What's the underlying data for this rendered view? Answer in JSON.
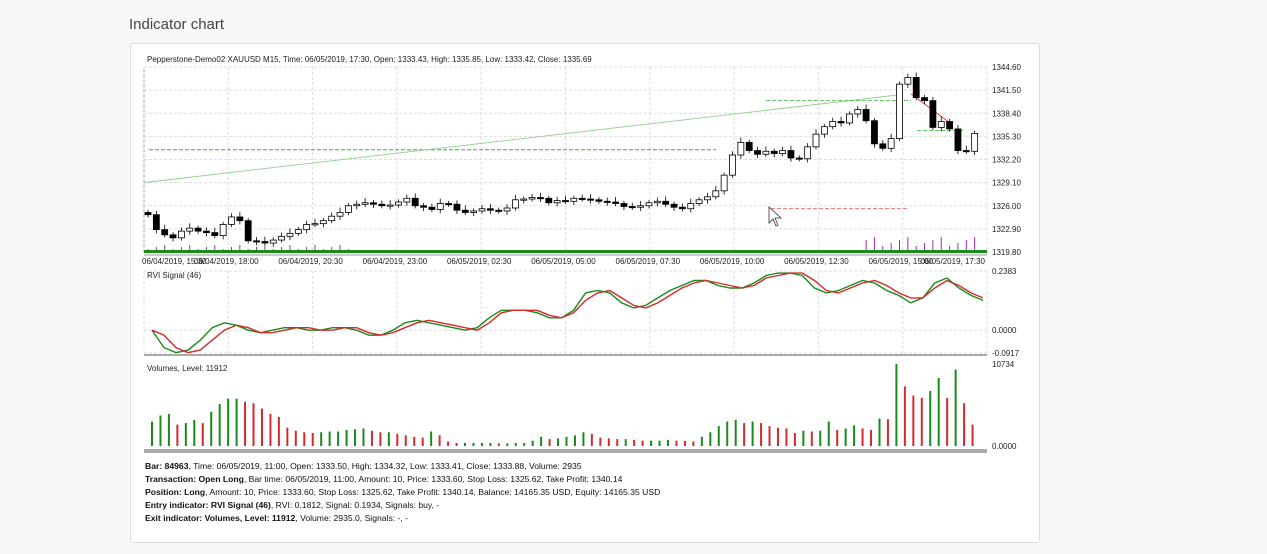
{
  "page_title": "Indicator chart",
  "chart_header": "Pepperstone-Demo02 XAUUSD M15, Time: 06/05/2019, 17:30, Open: 1333.43, High: 1335.85, Low: 1333.42, Close: 1335.69",
  "chart_data": [
    {
      "type": "candlestick",
      "y_ticks": [
        "1344.60",
        "1341.50",
        "1338.40",
        "1335.30",
        "1332.20",
        "1329.10",
        "1326.00",
        "1322.90",
        "1319.80"
      ],
      "ylim": [
        1319.8,
        1344.6
      ],
      "x_ticks": [
        "06/04/2019, 15:30",
        "06/04/2019, 18:00",
        "06/04/2019, 20:30",
        "06/04/2019, 23:00",
        "06/05/2019, 02:30",
        "06/05/2019, 05:00",
        "06/05/2019, 07:30",
        "06/05/2019, 10:00",
        "06/05/2019, 12:30",
        "06/05/2019, 15:00",
        "06/05/2019, 17:30"
      ],
      "closes": [
        1324.8,
        1322.8,
        1322.1,
        1321.7,
        1322.6,
        1323.0,
        1322.6,
        1322.4,
        1322.0,
        1323.5,
        1324.5,
        1324.0,
        1321.3,
        1321.2,
        1321.0,
        1321.4,
        1321.9,
        1322.3,
        1322.8,
        1323.5,
        1323.6,
        1324.0,
        1324.6,
        1325.1,
        1326.0,
        1326.2,
        1326.4,
        1326.2,
        1326.0,
        1326.1,
        1326.5,
        1327.0,
        1326.0,
        1325.8,
        1325.5,
        1326.3,
        1326.2,
        1325.4,
        1325.1,
        1325.3,
        1325.6,
        1325.4,
        1325.3,
        1325.7,
        1326.8,
        1326.9,
        1327.1,
        1327.0,
        1326.4,
        1326.7,
        1326.6,
        1327.0,
        1326.9,
        1326.8,
        1326.6,
        1326.5,
        1326.3,
        1325.9,
        1325.8,
        1326.0,
        1326.4,
        1326.6,
        1326.2,
        1325.8,
        1325.6,
        1326.3,
        1326.8,
        1327.2,
        1328.0,
        1330.1,
        1332.8,
        1334.5,
        1333.4,
        1332.9,
        1333.3,
        1333.0,
        1333.4,
        1332.4,
        1332.3,
        1333.9,
        1335.6,
        1336.6,
        1337.3,
        1337.1,
        1338.3,
        1338.9,
        1337.4,
        1334.3,
        1333.7,
        1335.0,
        1342.3,
        1343.2,
        1340.5,
        1340.1,
        1336.5,
        1337.3,
        1336.3,
        1333.4,
        1333.3,
        1335.7
      ],
      "volume_bars_first": 25,
      "volume_bars_last": 14
    },
    {
      "type": "line",
      "title": "RVI Signal (46)",
      "y_ticks": [
        "0.2383",
        "0.0000",
        "-0.0917"
      ],
      "ylim": [
        -0.0917,
        0.2383
      ],
      "series": [
        {
          "name": "RVI",
          "color": "#1a8a1a",
          "values": [
            0.0,
            -0.07,
            -0.09,
            -0.08,
            -0.04,
            0.01,
            0.03,
            0.02,
            0.0,
            -0.01,
            0.0,
            0.01,
            0.01,
            0.0,
            0.0,
            0.01,
            0.01,
            0.0,
            -0.02,
            -0.02,
            0.0,
            0.03,
            0.04,
            0.03,
            0.02,
            0.01,
            0.0,
            0.01,
            0.05,
            0.08,
            0.08,
            0.08,
            0.07,
            0.05,
            0.05,
            0.08,
            0.15,
            0.16,
            0.15,
            0.11,
            0.09,
            0.1,
            0.13,
            0.16,
            0.18,
            0.2,
            0.2,
            0.18,
            0.17,
            0.17,
            0.19,
            0.22,
            0.23,
            0.23,
            0.22,
            0.17,
            0.15,
            0.16,
            0.18,
            0.2,
            0.19,
            0.16,
            0.14,
            0.11,
            0.13,
            0.19,
            0.21,
            0.17,
            0.14,
            0.12
          ]
        },
        {
          "name": "Signal",
          "color": "#d42a2a",
          "values": [
            0.0,
            -0.02,
            -0.07,
            -0.09,
            -0.08,
            -0.04,
            0.0,
            0.02,
            0.01,
            -0.01,
            -0.01,
            0.0,
            0.01,
            0.01,
            0.0,
            0.0,
            0.01,
            0.01,
            -0.01,
            -0.02,
            -0.01,
            0.01,
            0.03,
            0.04,
            0.03,
            0.02,
            0.01,
            0.0,
            0.03,
            0.07,
            0.08,
            0.08,
            0.08,
            0.06,
            0.05,
            0.07,
            0.12,
            0.15,
            0.16,
            0.13,
            0.1,
            0.09,
            0.11,
            0.14,
            0.17,
            0.19,
            0.2,
            0.19,
            0.18,
            0.17,
            0.18,
            0.21,
            0.22,
            0.23,
            0.23,
            0.2,
            0.16,
            0.15,
            0.17,
            0.19,
            0.2,
            0.18,
            0.15,
            0.13,
            0.13,
            0.17,
            0.2,
            0.18,
            0.15,
            0.13
          ]
        }
      ]
    },
    {
      "type": "bar",
      "title": "Volumes, Level: 11912",
      "y_ticks": [
        "10734",
        "0.0000"
      ],
      "ylim": [
        0,
        10734
      ],
      "values": [
        3200,
        4000,
        4200,
        2800,
        3000,
        3400,
        3000,
        4500,
        5500,
        6200,
        6200,
        5800,
        5600,
        4900,
        4200,
        3800,
        2400,
        2000,
        1800,
        1700,
        1800,
        1900,
        1900,
        2100,
        2200,
        2300,
        2000,
        1800,
        1800,
        1600,
        1400,
        1200,
        1100,
        1900,
        1400,
        600,
        400,
        400,
        400,
        400,
        400,
        350,
        350,
        400,
        400,
        700,
        1200,
        900,
        1000,
        1200,
        1400,
        1800,
        1600,
        1100,
        1000,
        900,
        900,
        800,
        700,
        700,
        700,
        800,
        700,
        650,
        600,
        1200,
        1800,
        2600,
        3200,
        3400,
        3000,
        3200,
        3000,
        2600,
        2400,
        2300,
        1700,
        2000,
        1900,
        2000,
        3200,
        2100,
        2300,
        2700,
        2300,
        2100,
        3600,
        3500,
        10734,
        7800,
        6600,
        6300,
        7200,
        8900,
        6300,
        10000,
        5600,
        2800
      ],
      "colors_up_down": [
        "#1a8a1a",
        "#d42a2a"
      ]
    }
  ],
  "info": {
    "l1": {
      "label": "Bar: 84963",
      "text": ", Time: 06/05/2019, 11:00, Open: 1333.50, High: 1334.32, Low: 1333.41, Close: 1333.88, Volume: 2935"
    },
    "l2": {
      "label": "Transaction: Open Long",
      "text": ", Bar time: 06/05/2019, 11:00, Amount: 10, Price: 1333.60, Stop Loss: 1325.62, Take Profit: 1340.14"
    },
    "l3": {
      "label": "Position: Long",
      "text": ", Amount: 10, Price: 1333.60, Stop Loss: 1325.62, Take Profit: 1340.14, Balance: 14165.35 USD, Equity: 14165.35 USD"
    },
    "l4": {
      "label": "Entry indicator: RVI Signal (46)",
      "text": ", RVI: 0.1812, Signal: 0.1934, Signals: buy, -"
    },
    "l5": {
      "label": "Exit indicator: Volumes, Level: 11912",
      "text": ", Volume: 2935.0, Signals: -, -"
    }
  }
}
